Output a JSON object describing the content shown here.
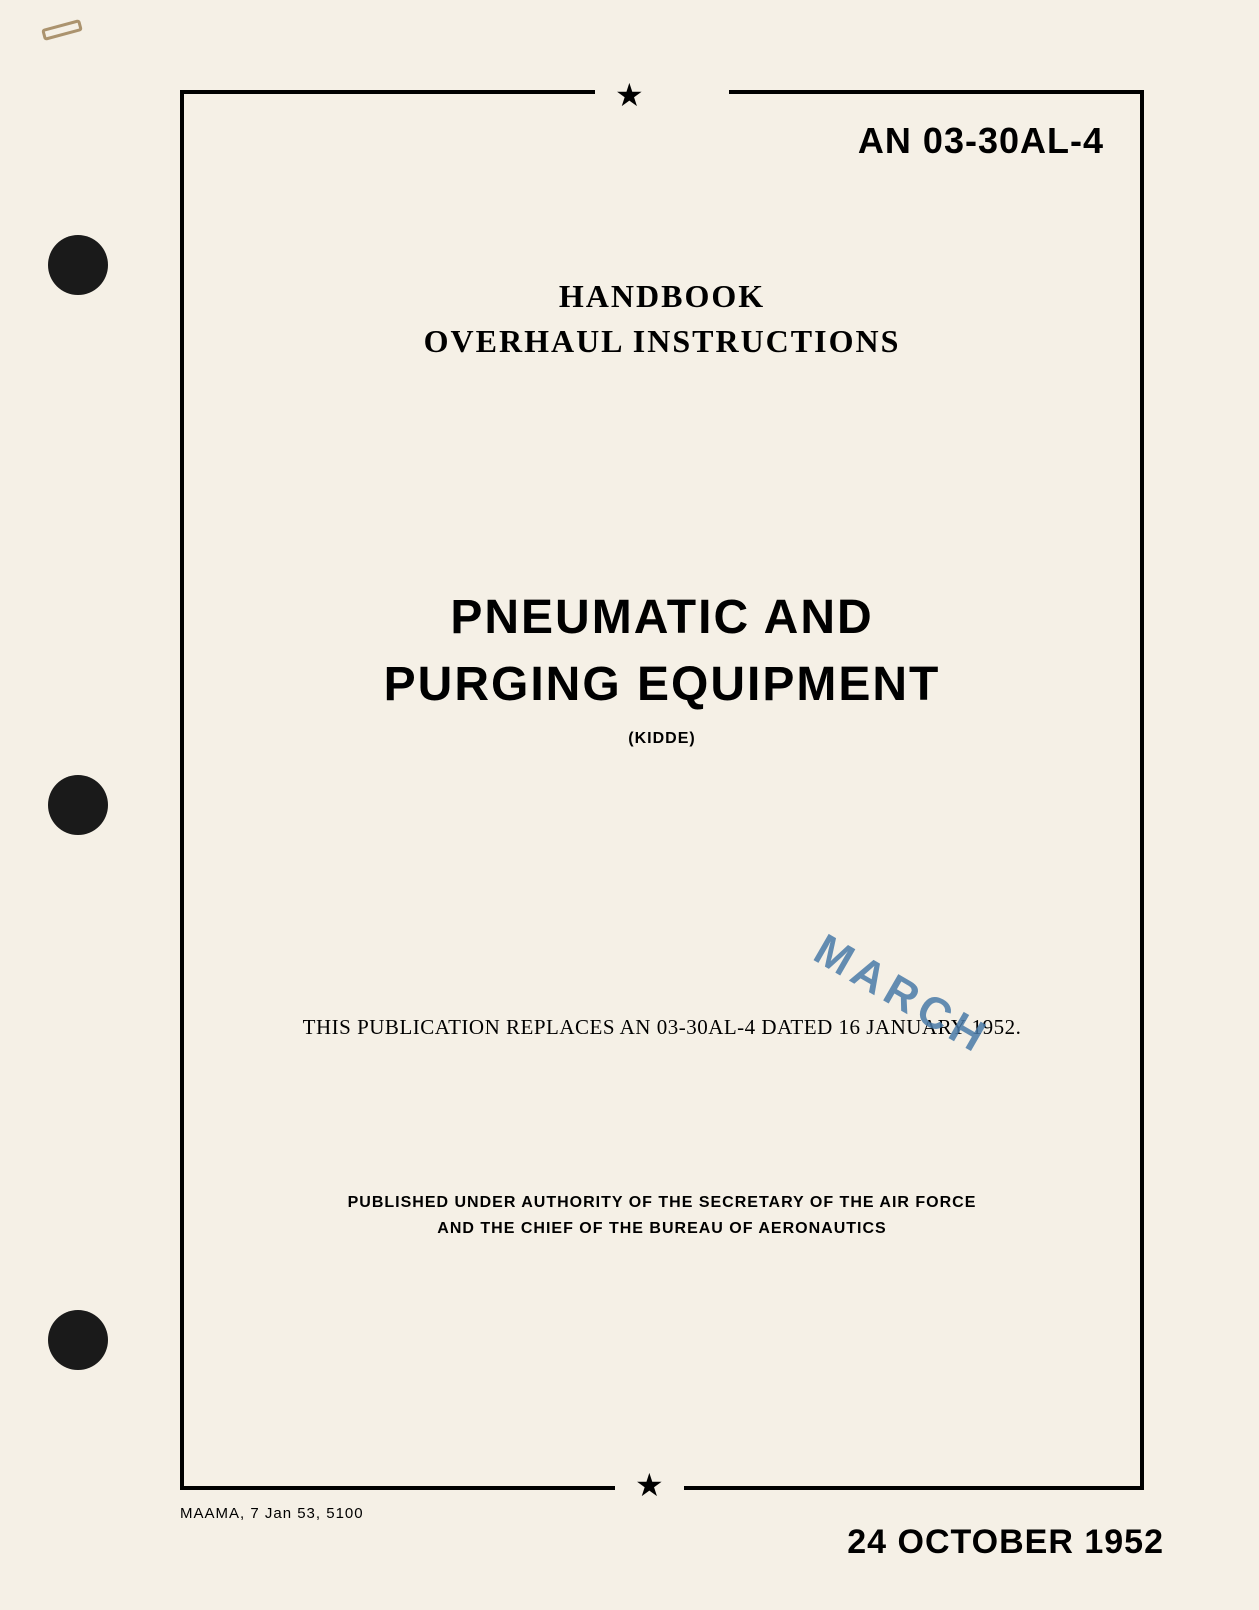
{
  "document": {
    "number": "AN 03-30AL-4",
    "header_line1": "HANDBOOK",
    "header_line2": "OVERHAUL INSTRUCTIONS",
    "title_line1": "PNEUMATIC AND",
    "title_line2": "PURGING EQUIPMENT",
    "title_manufacturer": "(KIDDE)",
    "replaces_text": "THIS PUBLICATION REPLACES AN 03-30AL-4 DATED 16 JANUARY 1952.",
    "stamp_text": "MARCH",
    "authority_line1": "PUBLISHED UNDER AUTHORITY OF THE SECRETARY OF THE AIR FORCE",
    "authority_line2": "AND THE CHIEF OF THE BUREAU OF AERONAUTICS",
    "footer_left": "MAAMA, 7 Jan 53, 5100",
    "footer_date": "24 OCTOBER 1952"
  },
  "styling": {
    "page_bg": "#f5f0e6",
    "text_color": "#000000",
    "hole_color": "#1a1a1a",
    "stamp_color": "#4a7ba8",
    "border_width": 4,
    "doc_number_fontsize": 36,
    "header_fontsize": 32,
    "title_fontsize": 48,
    "title_sub_fontsize": 16,
    "replaces_fontsize": 21,
    "authority_fontsize": 16,
    "footer_left_fontsize": 15,
    "footer_date_fontsize": 34,
    "stamp_fontsize": 44,
    "stamp_rotation_deg": 30
  }
}
